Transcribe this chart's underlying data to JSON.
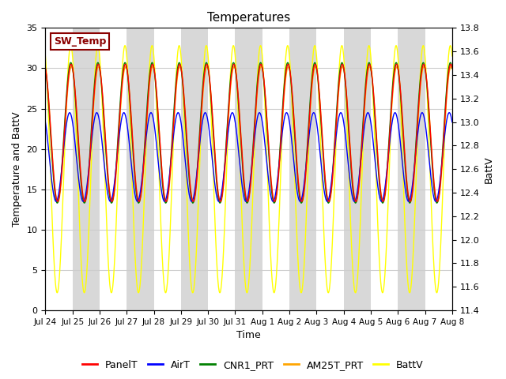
{
  "title": "Temperatures",
  "xlabel": "Time",
  "ylabel_left": "Temperature and BattV",
  "ylabel_right": "BattV",
  "ylim_left": [
    0,
    35
  ],
  "ylim_right": [
    11.4,
    13.8
  ],
  "yticks_left": [
    0,
    5,
    10,
    15,
    20,
    25,
    30,
    35
  ],
  "yticks_right": [
    11.4,
    11.6,
    11.8,
    12.0,
    12.2,
    12.4,
    12.6,
    12.8,
    13.0,
    13.2,
    13.4,
    13.6,
    13.8
  ],
  "xtick_labels": [
    "Jul 24",
    "Jul 25",
    "Jul 26",
    "Jul 27",
    "Jul 28",
    "Jul 29",
    "Jul 30",
    "Jul 31",
    "Aug 1",
    "Aug 2",
    "Aug 3",
    "Aug 4",
    "Aug 5",
    "Aug 6",
    "Aug 7",
    "Aug 8"
  ],
  "series_colors": [
    "red",
    "blue",
    "green",
    "orange",
    "yellow"
  ],
  "series_names": [
    "PanelT",
    "AirT",
    "CNR1_PRT",
    "AM25T_PRT",
    "BattV"
  ],
  "annotation_text": "SW_Temp",
  "annotation_color": "#8B0000",
  "background_color": "#ffffff",
  "band_color": "#d8d8d8",
  "n_days": 15,
  "points_per_day": 144
}
